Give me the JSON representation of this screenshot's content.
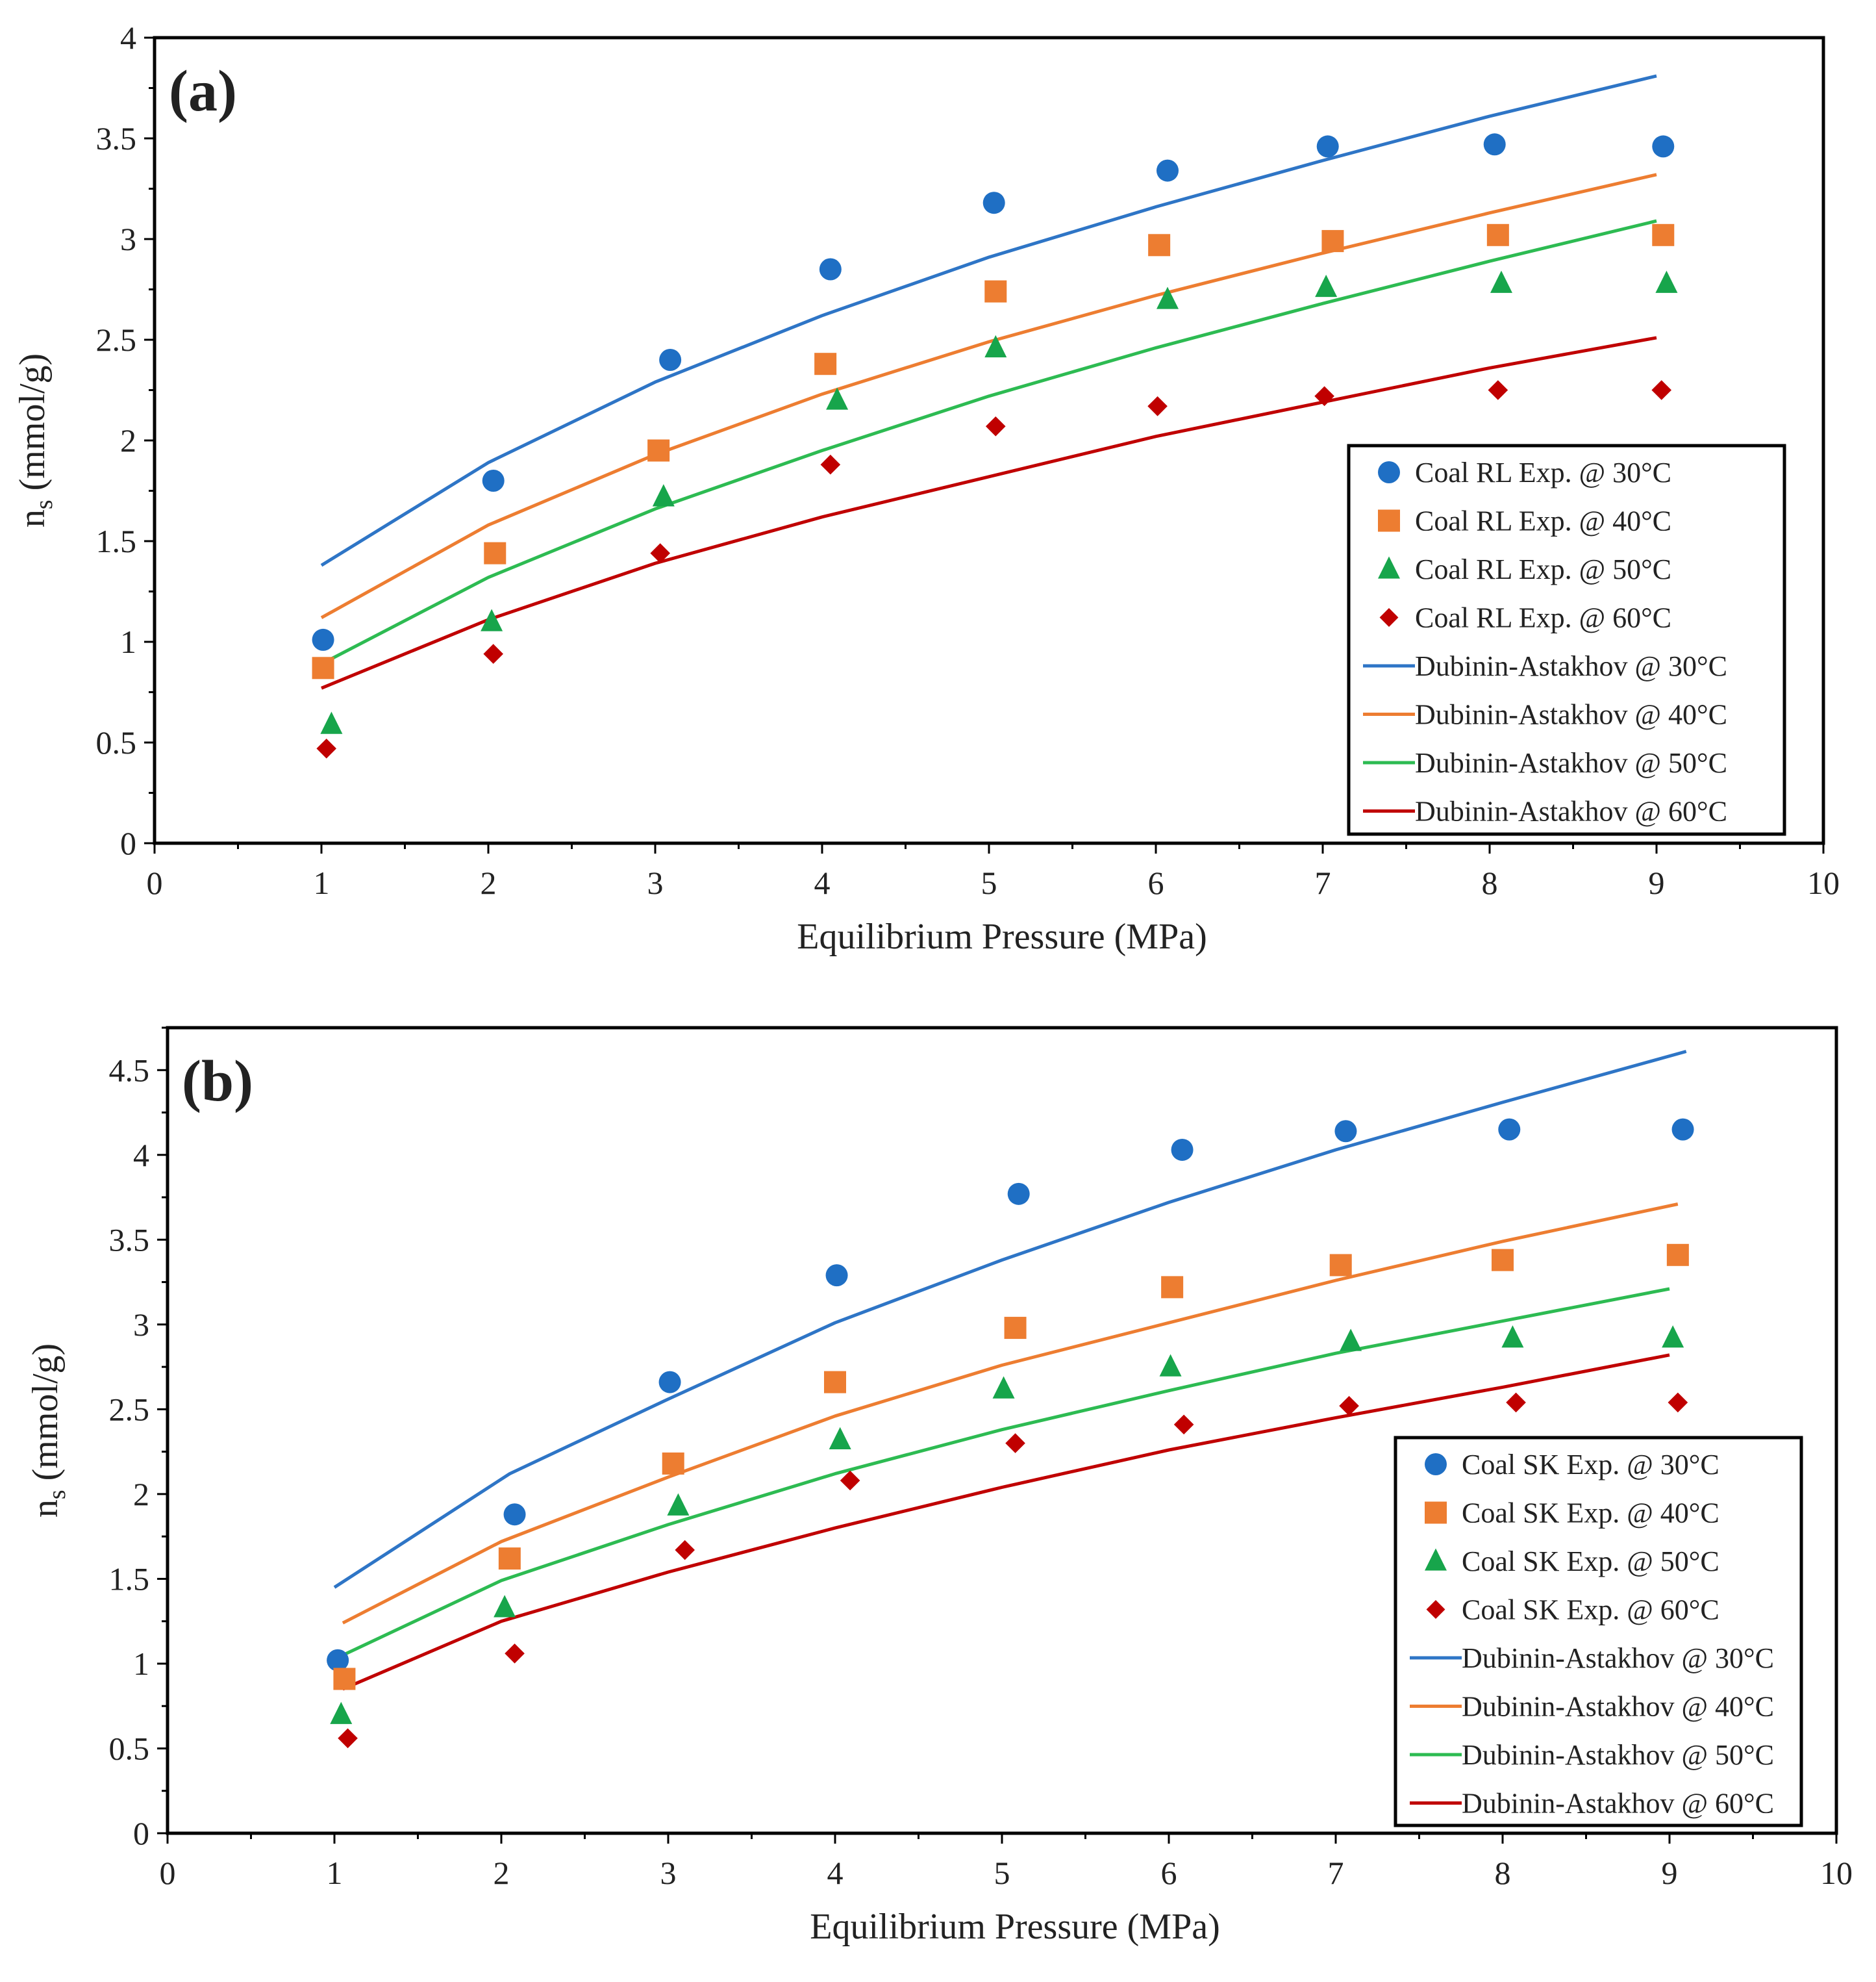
{
  "chart_data": [
    {
      "type": "scatter",
      "panel_label": "(a)",
      "xlabel": "Equilibrium Pressure (MPa)",
      "ylabel": "n",
      "ylabel_sub": "s",
      "ylabel_unit": " (mmol/g)",
      "xlim": [
        0,
        10
      ],
      "ylim": [
        0,
        4
      ],
      "xticks": [
        0,
        1,
        2,
        3,
        4,
        5,
        6,
        7,
        8,
        9,
        10
      ],
      "yticks": [
        0,
        0.5,
        1,
        1.5,
        2,
        2.5,
        3,
        3.5,
        4
      ],
      "xtick_labels": [
        "0",
        "1",
        "2",
        "3",
        "4",
        "5",
        "6",
        "7",
        "8",
        "9",
        "10"
      ],
      "ytick_labels": [
        "0",
        "0.5",
        "1",
        "1.5",
        "2",
        "2.5",
        "3",
        "3.5",
        "4"
      ],
      "grid": false,
      "legend_position": "bottom-right",
      "series": [
        {
          "name": "Coal RL Exp. @ 30°C",
          "kind": "points",
          "marker": "circle",
          "color": "#1F6FC4",
          "x": [
            1.01,
            2.03,
            3.09,
            4.05,
            5.03,
            6.07,
            7.03,
            8.03,
            9.04
          ],
          "y": [
            1.01,
            1.8,
            2.4,
            2.85,
            3.18,
            3.34,
            3.46,
            3.47,
            3.46
          ]
        },
        {
          "name": "Coal RL Exp. @ 40°C",
          "kind": "points",
          "marker": "square",
          "color": "#ED7D31",
          "x": [
            1.01,
            2.04,
            3.02,
            4.02,
            5.04,
            6.02,
            7.06,
            8.05,
            9.04
          ],
          "y": [
            0.87,
            1.44,
            1.95,
            2.38,
            2.74,
            2.97,
            2.99,
            3.02,
            3.02
          ]
        },
        {
          "name": "Coal RL Exp. @ 50°C",
          "kind": "points",
          "marker": "triangle",
          "color": "#17A54B",
          "x": [
            1.06,
            2.02,
            3.05,
            4.09,
            5.04,
            6.07,
            7.02,
            8.07,
            9.06
          ],
          "y": [
            0.59,
            1.1,
            1.72,
            2.2,
            2.46,
            2.7,
            2.76,
            2.78,
            2.78
          ]
        },
        {
          "name": "Coal RL Exp. @ 60°C",
          "kind": "points",
          "marker": "diamond",
          "color": "#C00000",
          "x": [
            1.03,
            2.03,
            3.03,
            4.05,
            5.04,
            6.01,
            7.01,
            8.05,
            9.03
          ],
          "y": [
            0.47,
            0.94,
            1.44,
            1.88,
            2.07,
            2.17,
            2.22,
            2.25,
            2.25
          ]
        },
        {
          "name": "Dubinin-Astakhov @ 30°C",
          "kind": "line",
          "color": "#2E75C6",
          "x": [
            1,
            2,
            3,
            4,
            5,
            6,
            7,
            8,
            9
          ],
          "y": [
            1.38,
            1.89,
            2.29,
            2.62,
            2.91,
            3.16,
            3.39,
            3.61,
            3.81
          ]
        },
        {
          "name": "Dubinin-Astakhov @ 40°C",
          "kind": "line",
          "color": "#ED7D31",
          "x": [
            1,
            2,
            3,
            4,
            5,
            6,
            7,
            8,
            9
          ],
          "y": [
            1.12,
            1.58,
            1.93,
            2.23,
            2.49,
            2.72,
            2.93,
            3.13,
            3.32
          ]
        },
        {
          "name": "Dubinin-Astakhov @ 50°C",
          "kind": "line",
          "color": "#2DBB52",
          "x": [
            1,
            2,
            3,
            4,
            5,
            6,
            7,
            8,
            9
          ],
          "y": [
            0.89,
            1.32,
            1.66,
            1.95,
            2.22,
            2.46,
            2.68,
            2.89,
            3.09
          ]
        },
        {
          "name": "Dubinin-Astakhov @ 60°C",
          "kind": "line",
          "color": "#C00000",
          "x": [
            1,
            2,
            3,
            4,
            5,
            6,
            7,
            8,
            9
          ],
          "y": [
            0.77,
            1.11,
            1.39,
            1.62,
            1.82,
            2.02,
            2.19,
            2.36,
            2.51
          ]
        }
      ]
    },
    {
      "type": "scatter",
      "panel_label": "(b)",
      "xlabel": "Equilibrium Pressure (MPa)",
      "ylabel": "n",
      "ylabel_sub": "s",
      "ylabel_unit": " (mmol/g)",
      "xlim": [
        0,
        10
      ],
      "ylim": [
        0,
        4.75
      ],
      "xticks": [
        0,
        1,
        2,
        3,
        4,
        5,
        6,
        7,
        8,
        9,
        10
      ],
      "yticks": [
        0,
        0.5,
        1,
        1.5,
        2,
        2.5,
        3,
        3.5,
        4,
        4.5
      ],
      "xtick_labels": [
        "0",
        "1",
        "2",
        "3",
        "4",
        "5",
        "6",
        "7",
        "8",
        "9",
        "10"
      ],
      "ytick_labels": [
        "0",
        "0.5",
        "1",
        "1.5",
        "2",
        "2.5",
        "3",
        "3.5",
        "4",
        "4.5"
      ],
      "grid": false,
      "legend_position": "bottom-right",
      "series": [
        {
          "name": "Coal SK Exp. @ 30°C",
          "kind": "points",
          "marker": "circle",
          "color": "#1F6FC4",
          "x": [
            1.02,
            2.08,
            3.01,
            4.01,
            5.1,
            6.08,
            7.06,
            8.04,
            9.08
          ],
          "y": [
            1.02,
            1.88,
            2.66,
            3.29,
            3.77,
            4.03,
            4.14,
            4.15,
            4.15
          ]
        },
        {
          "name": "Coal SK Exp. @ 40°C",
          "kind": "points",
          "marker": "square",
          "color": "#ED7D31",
          "x": [
            1.06,
            2.05,
            3.03,
            4.0,
            5.08,
            6.02,
            7.03,
            8.0,
            9.05
          ],
          "y": [
            0.91,
            1.62,
            2.18,
            2.66,
            2.98,
            3.22,
            3.35,
            3.38,
            3.41
          ]
        },
        {
          "name": "Coal SK Exp. @ 50°C",
          "kind": "points",
          "marker": "triangle",
          "color": "#17A54B",
          "x": [
            1.04,
            2.02,
            3.06,
            4.03,
            5.01,
            6.01,
            7.09,
            8.06,
            9.02
          ],
          "y": [
            0.7,
            1.33,
            1.93,
            2.32,
            2.62,
            2.75,
            2.9,
            2.92,
            2.92
          ]
        },
        {
          "name": "Coal SK Exp. @ 60°C",
          "kind": "points",
          "marker": "diamond",
          "color": "#C00000",
          "x": [
            1.08,
            2.08,
            3.1,
            4.09,
            5.08,
            6.09,
            7.08,
            8.08,
            9.05
          ],
          "y": [
            0.56,
            1.06,
            1.67,
            2.08,
            2.3,
            2.41,
            2.52,
            2.54,
            2.54
          ]
        },
        {
          "name": "Dubinin-Astakhov @ 30°C",
          "kind": "line",
          "color": "#2E75C6",
          "x": [
            1,
            2.05,
            3,
            4,
            5,
            6,
            7,
            8,
            9.1
          ],
          "y": [
            1.45,
            2.12,
            2.56,
            3.01,
            3.38,
            3.72,
            4.03,
            4.31,
            4.61
          ]
        },
        {
          "name": "Dubinin-Astakhov @ 40°C",
          "kind": "line",
          "color": "#ED7D31",
          "x": [
            1.05,
            2,
            3,
            4,
            5,
            6,
            7,
            8,
            9.05
          ],
          "y": [
            1.24,
            1.72,
            2.1,
            2.46,
            2.76,
            3.01,
            3.26,
            3.49,
            3.71
          ]
        },
        {
          "name": "Dubinin-Astakhov @ 50°C",
          "kind": "line",
          "color": "#2DBB52",
          "x": [
            1.05,
            2,
            3,
            4,
            5,
            6,
            7,
            8,
            9
          ],
          "y": [
            1.05,
            1.49,
            1.82,
            2.12,
            2.38,
            2.61,
            2.83,
            3.02,
            3.21
          ]
        },
        {
          "name": "Dubinin-Astakhov @ 60°C",
          "kind": "line",
          "color": "#C00000",
          "x": [
            1.05,
            2,
            3,
            4,
            5,
            6,
            7,
            8,
            9
          ],
          "y": [
            0.85,
            1.25,
            1.54,
            1.8,
            2.04,
            2.26,
            2.45,
            2.63,
            2.82
          ]
        }
      ]
    }
  ]
}
